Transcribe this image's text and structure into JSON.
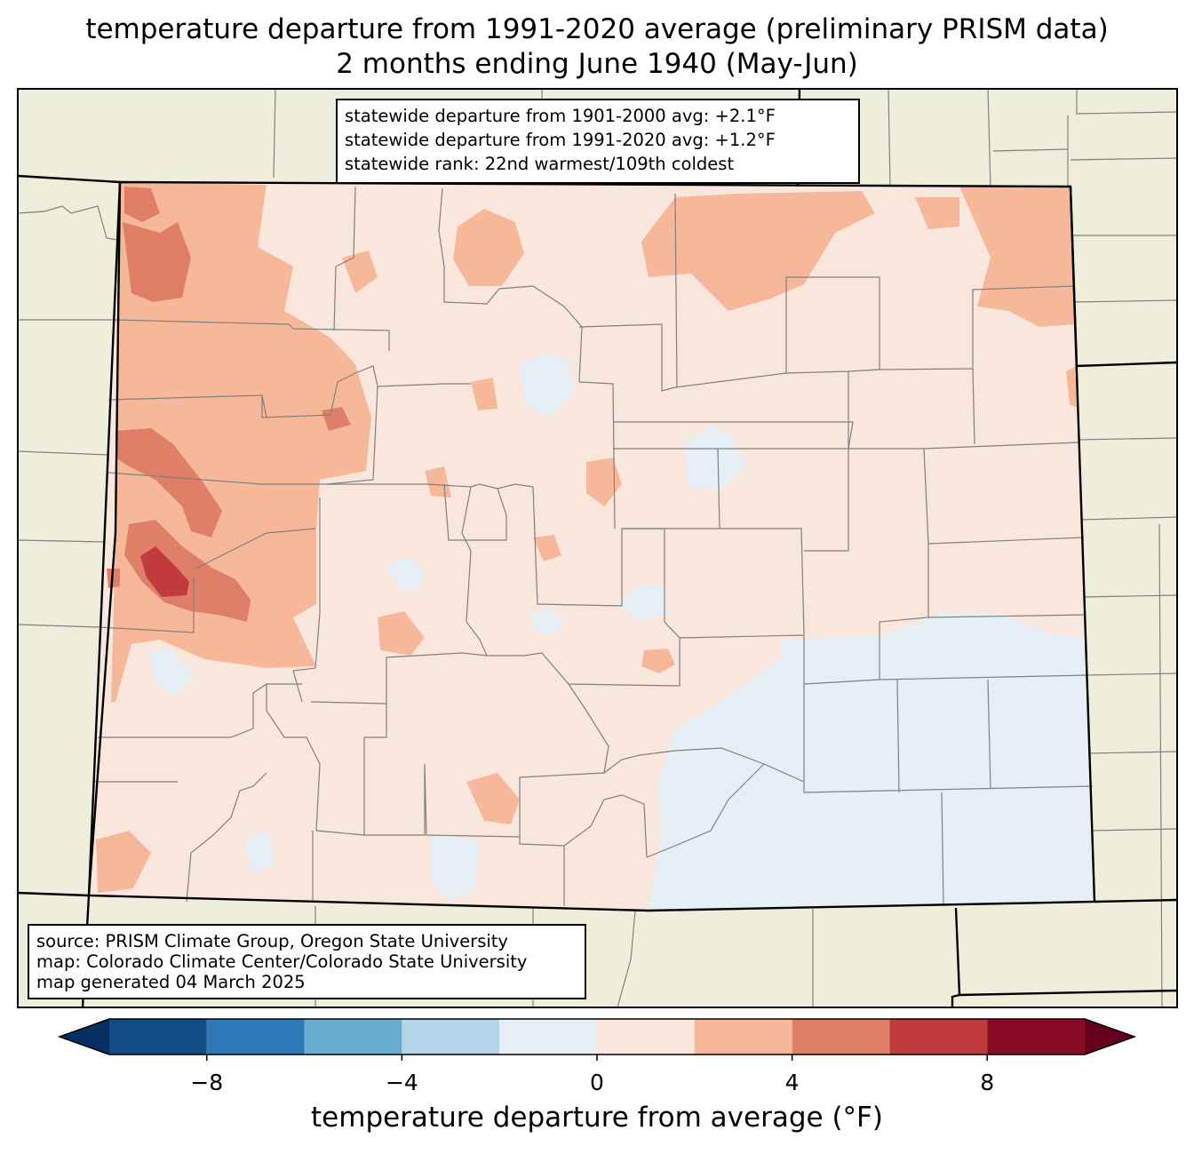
{
  "title": {
    "line1": "temperature departure from 1991-2020 average (preliminary PRISM data)",
    "line2": "2 months ending June 1940 (May-Jun)"
  },
  "stats": {
    "line1": "statewide departure from 1901-2000 avg: +2.1°F",
    "line2": "statewide departure from 1991-2020 avg: +1.2°F",
    "line3": "statewide rank: 22nd warmest/109th coldest"
  },
  "source": {
    "line1": "source: PRISM Climate Group, Oregon State University",
    "line2": "map: Colorado Climate Center/Colorado State University",
    "line3": "map generated 04 March 2025"
  },
  "colorbar": {
    "label": "temperature departure from average (°F)",
    "min": -10,
    "max": 10,
    "bins": [
      -10,
      -8,
      -6,
      -4,
      -2,
      0,
      2,
      4,
      6,
      8,
      10
    ],
    "colors": [
      "#134b87",
      "#2e78b7",
      "#6aacd0",
      "#b2d5e8",
      "#e6eef6",
      "#f9e7dd",
      "#f7b899",
      "#e07f67",
      "#c13a3e",
      "#870b24"
    ],
    "under_color": "#053061",
    "over_color": "#67001f",
    "ticks": [
      {
        "value": -8,
        "label": "−8"
      },
      {
        "value": -4,
        "label": "−4"
      },
      {
        "value": 0,
        "label": "0"
      },
      {
        "value": 4,
        "label": "4"
      },
      {
        "value": 8,
        "label": "8"
      }
    ]
  },
  "map_colors": {
    "land_background": "#efeedb",
    "state_base": "#f9e7dd",
    "cool": "#e6eef6",
    "warm_light": "#f7b899",
    "warm_mid": "#e07f67",
    "warm_hot": "#c13a3e",
    "county_line": "#808080",
    "state_line": "#000000"
  }
}
